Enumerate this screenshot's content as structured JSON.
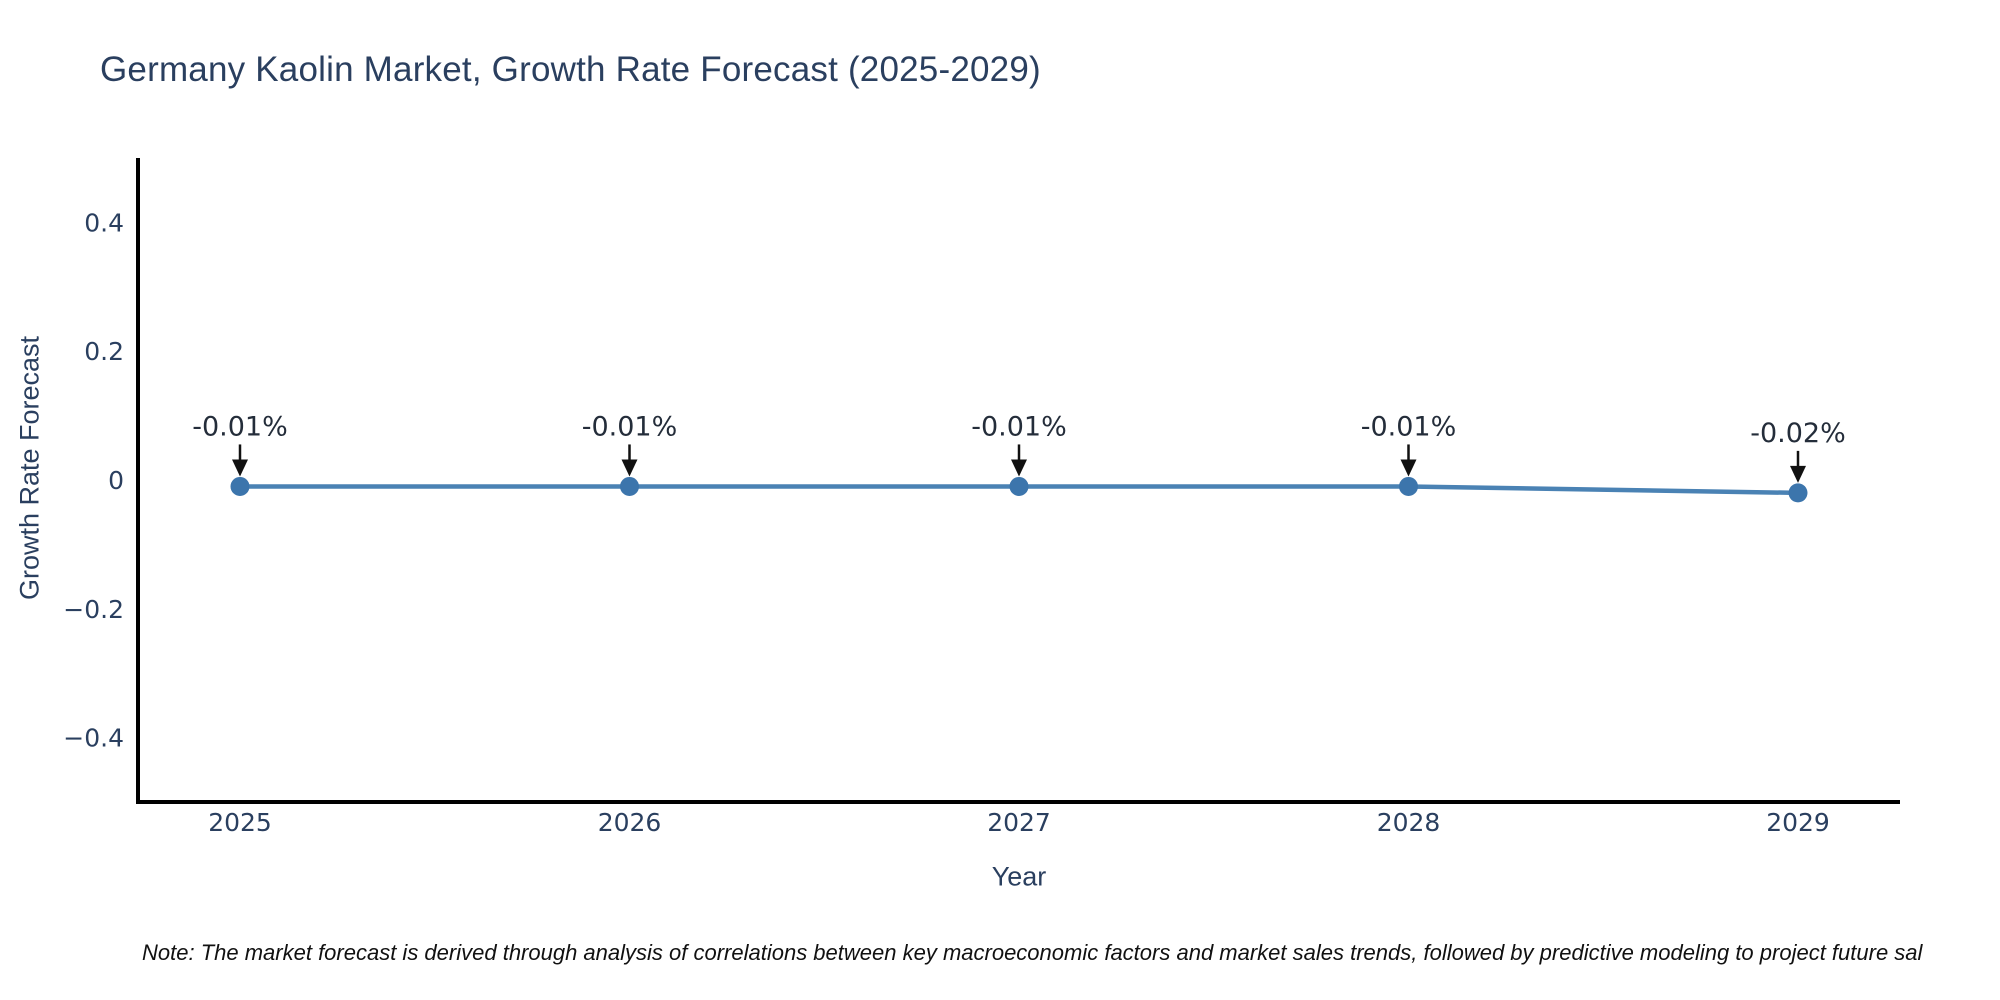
{
  "footnote": "Note: The market forecast is derived through analysis of correlations between key macroeconomic factors and market sales trends, followed by predictive modeling to project future sal",
  "chart_data": {
    "type": "line",
    "title": "Germany Kaolin Market, Growth Rate Forecast (2025-2029)",
    "xlabel": "Year",
    "ylabel": "Growth Rate Forecast",
    "x": [
      2025,
      2026,
      2027,
      2028,
      2029
    ],
    "series": [
      {
        "name": "Growth Rate Forecast",
        "values": [
          -0.01,
          -0.01,
          -0.01,
          -0.01,
          -0.02
        ]
      }
    ],
    "point_labels": [
      "-0.01%",
      "-0.01%",
      "-0.01%",
      "-0.01%",
      "-0.02%"
    ],
    "x_ticks": [
      "2025",
      "2026",
      "2027",
      "2028",
      "2029"
    ],
    "y_ticks": [
      {
        "value": 0.4,
        "label": "0.4"
      },
      {
        "value": 0.2,
        "label": "0.2"
      },
      {
        "value": 0,
        "label": "0"
      },
      {
        "value": -0.2,
        "label": "−0.2"
      },
      {
        "value": -0.4,
        "label": "−0.4"
      }
    ],
    "ylim": [
      -0.5,
      0.5
    ],
    "grid": false,
    "legend": "none",
    "colors": {
      "line": "#4a82b4",
      "marker": "#3c75ac",
      "text": "#2a3f5f",
      "annotation_text": "#242d3a",
      "arrow": "#111111",
      "axis": "#000000"
    }
  }
}
